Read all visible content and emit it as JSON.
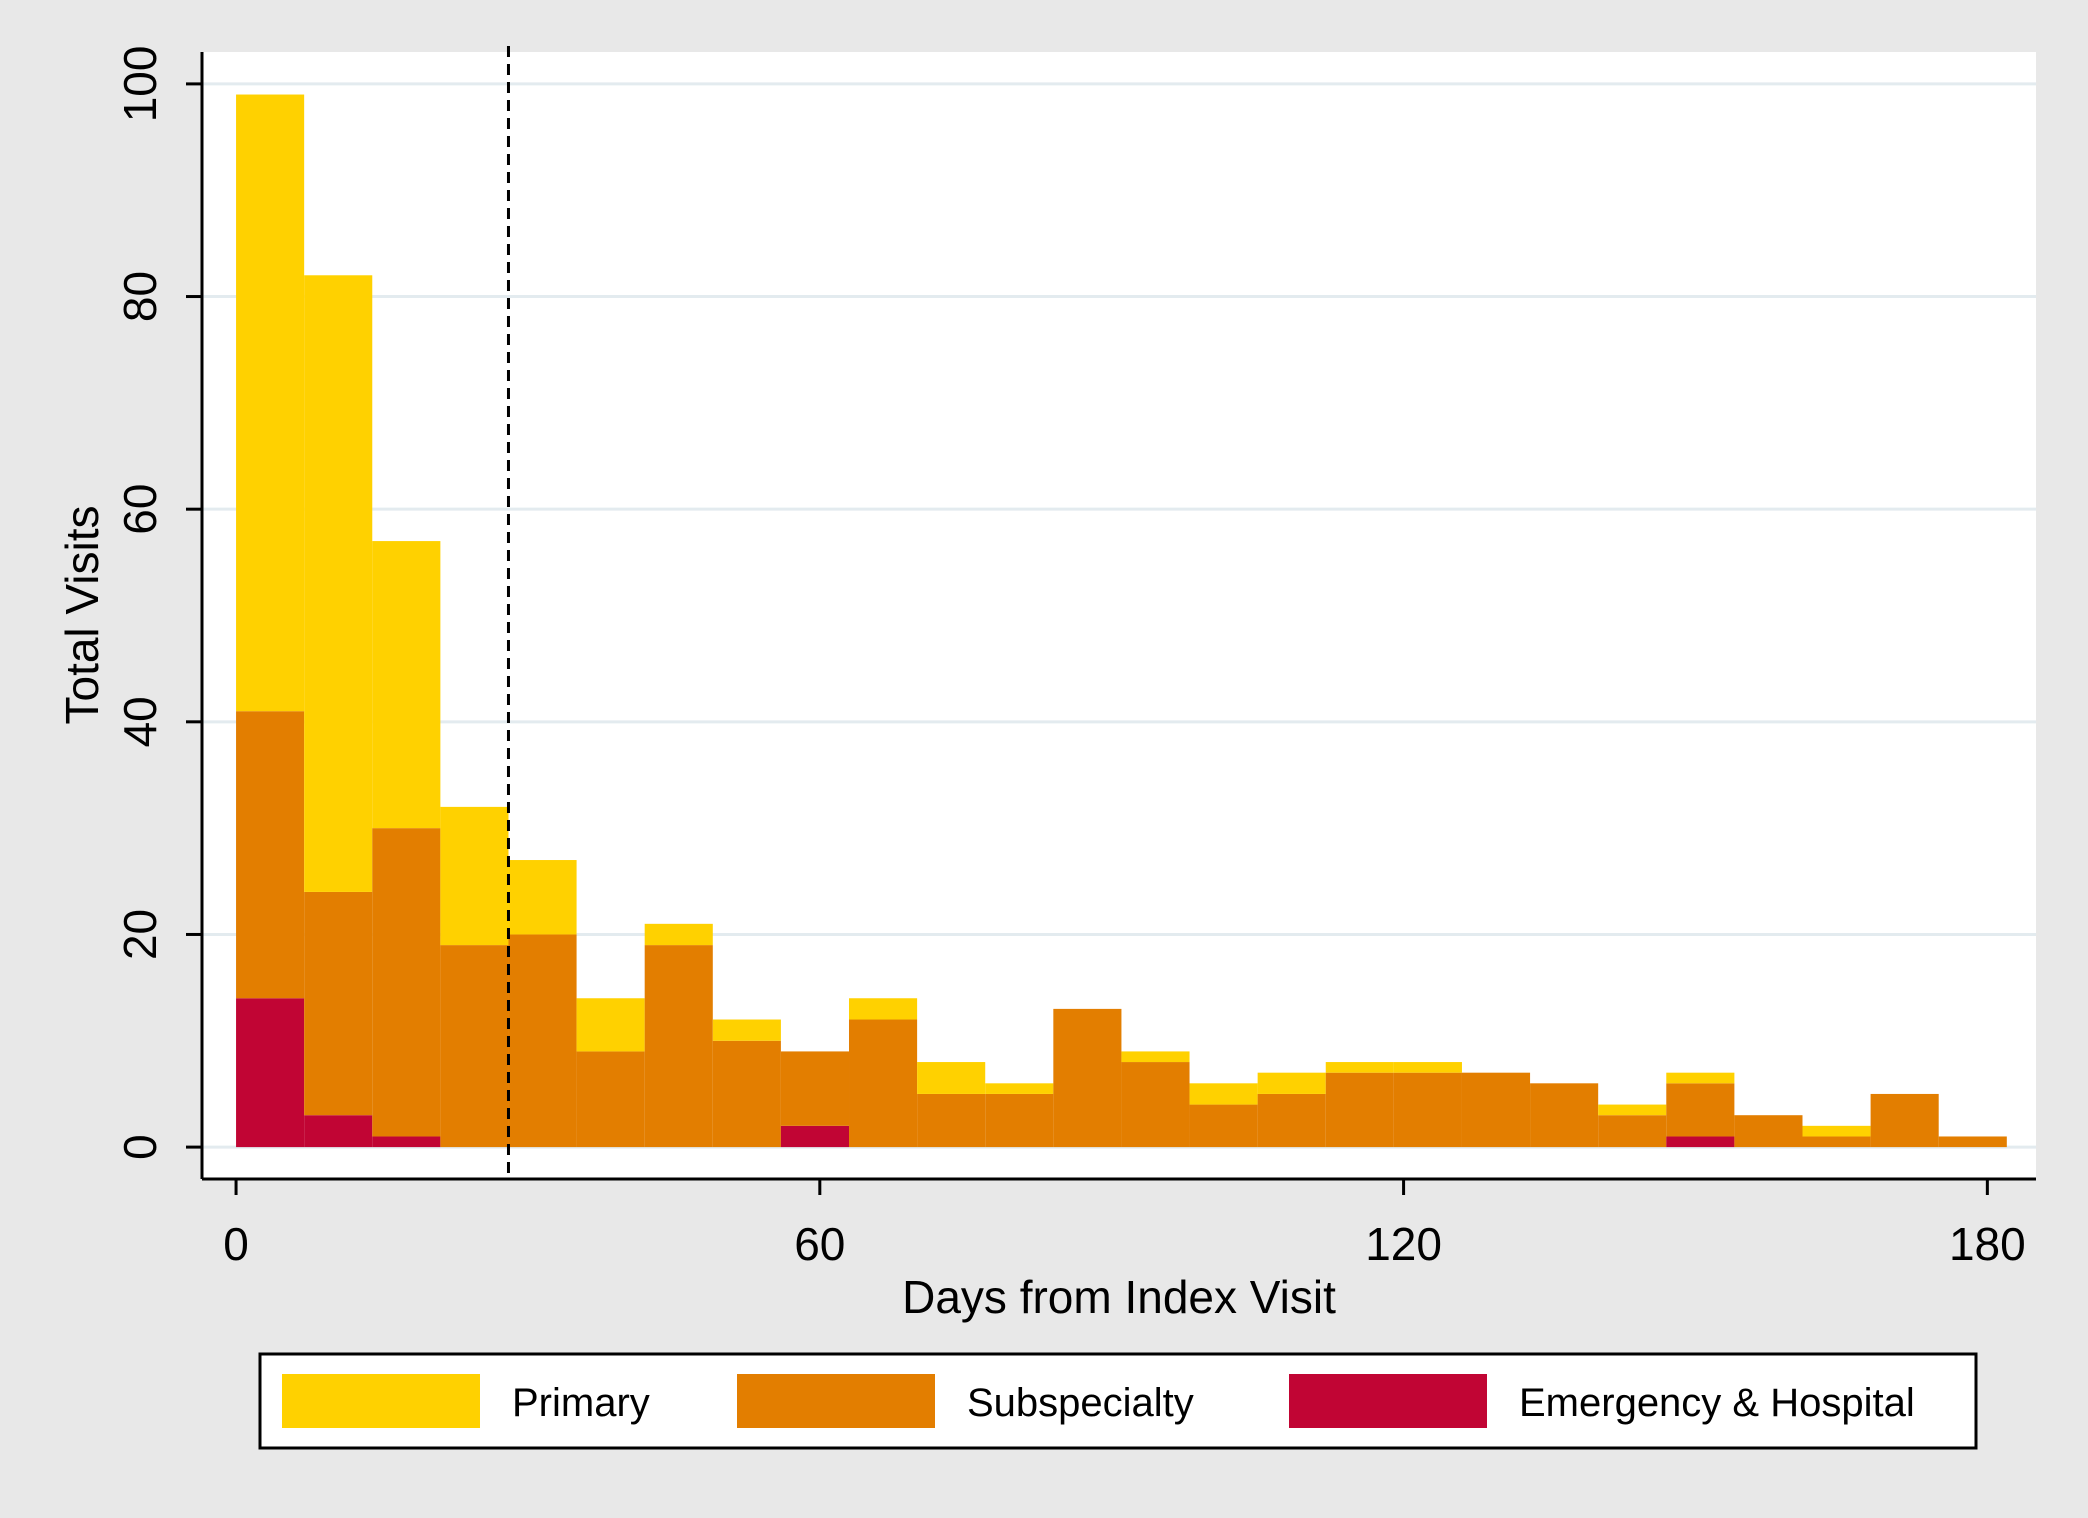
{
  "chart_data": {
    "type": "bar",
    "stacked": true,
    "title": "",
    "xlabel": "Days from Index Visit",
    "ylabel": "Total Visits",
    "xlim": [
      -3.5,
      185
    ],
    "ylim": [
      -3,
      103
    ],
    "xticks": [
      0,
      60,
      120,
      180
    ],
    "yticks": [
      0,
      20,
      40,
      60,
      80,
      100
    ],
    "grid": true,
    "bin_width": 7,
    "bins_start": [
      0,
      7,
      14,
      21,
      28,
      35,
      42,
      49,
      56,
      63,
      70,
      77,
      84,
      91,
      98,
      105,
      112,
      119,
      126,
      133,
      140,
      147,
      154,
      161,
      168,
      175
    ],
    "reference_line_x": 28,
    "legend_position": "bottom",
    "series": [
      {
        "name": "Emergency & Hospital",
        "color": "#c10534",
        "values": [
          14,
          3,
          1,
          0,
          0,
          0,
          0,
          0,
          2,
          0,
          0,
          0,
          0,
          0,
          0,
          0,
          0,
          0,
          0,
          0,
          0,
          1,
          0,
          0,
          0,
          0
        ]
      },
      {
        "name": "Subspecialty",
        "color": "#e37e00",
        "values": [
          27,
          21,
          29,
          19,
          20,
          9,
          19,
          10,
          7,
          12,
          5,
          5,
          13,
          8,
          4,
          5,
          7,
          7,
          7,
          6,
          3,
          5,
          3,
          1,
          5,
          1
        ]
      },
      {
        "name": "Primary",
        "color": "#ffd100",
        "values": [
          58,
          58,
          27,
          13,
          7,
          5,
          2,
          2,
          0,
          2,
          3,
          1,
          0,
          1,
          2,
          2,
          1,
          1,
          0,
          0,
          1,
          1,
          0,
          1,
          0,
          0
        ]
      }
    ],
    "legend_order": [
      "Primary",
      "Subspecialty",
      "Emergency & Hospital"
    ]
  }
}
